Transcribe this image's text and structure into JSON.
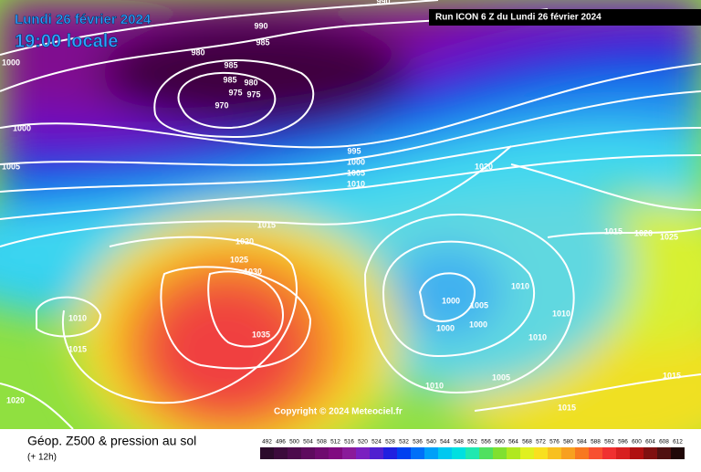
{
  "header": {
    "date": "Lundi 26 février 2024",
    "time": "19:00 locale",
    "run": "Run ICON 6 Z du Lundi 26 février 2024"
  },
  "copyright": "Copyright © 2024 Meteociel.fr",
  "footer": {
    "title": "Géop. Z500 & pression au sol",
    "lead": "(+ 12h)"
  },
  "isobar_labels": [
    990,
    990,
    985,
    1000,
    980,
    985,
    985,
    980,
    975,
    975,
    970,
    1000,
    1005,
    995,
    1000,
    1005,
    1010,
    1015,
    1020,
    1025,
    1030,
    1035,
    1010,
    1015,
    1020,
    1020,
    1015,
    1020,
    1025,
    1000,
    1005,
    1010,
    1000,
    1000,
    1010,
    1010,
    1010,
    1005,
    1015,
    1015
  ],
  "scale": {
    "values": [
      492,
      496,
      500,
      504,
      508,
      512,
      516,
      520,
      524,
      528,
      532,
      536,
      540,
      544,
      548,
      552,
      556,
      560,
      564,
      568,
      572,
      576,
      580,
      584,
      588,
      592,
      596,
      600,
      604,
      608,
      612
    ],
    "colors": [
      "#2b0a2b",
      "#3c0a3c",
      "#4d0a4d",
      "#5e0a5e",
      "#6f0a6f",
      "#800a80",
      "#8a1a9a",
      "#7a20c0",
      "#5020d0",
      "#2020e0",
      "#0040f0",
      "#0070f8",
      "#00a0f8",
      "#00c8f0",
      "#00e0e0",
      "#20e8b0",
      "#50e060",
      "#80e030",
      "#b0e820",
      "#e0f020",
      "#f8e020",
      "#f8c020",
      "#f8a020",
      "#f87820",
      "#f85030",
      "#f03030",
      "#d82020",
      "#b01010",
      "#801010",
      "#501010",
      "#200808"
    ]
  }
}
